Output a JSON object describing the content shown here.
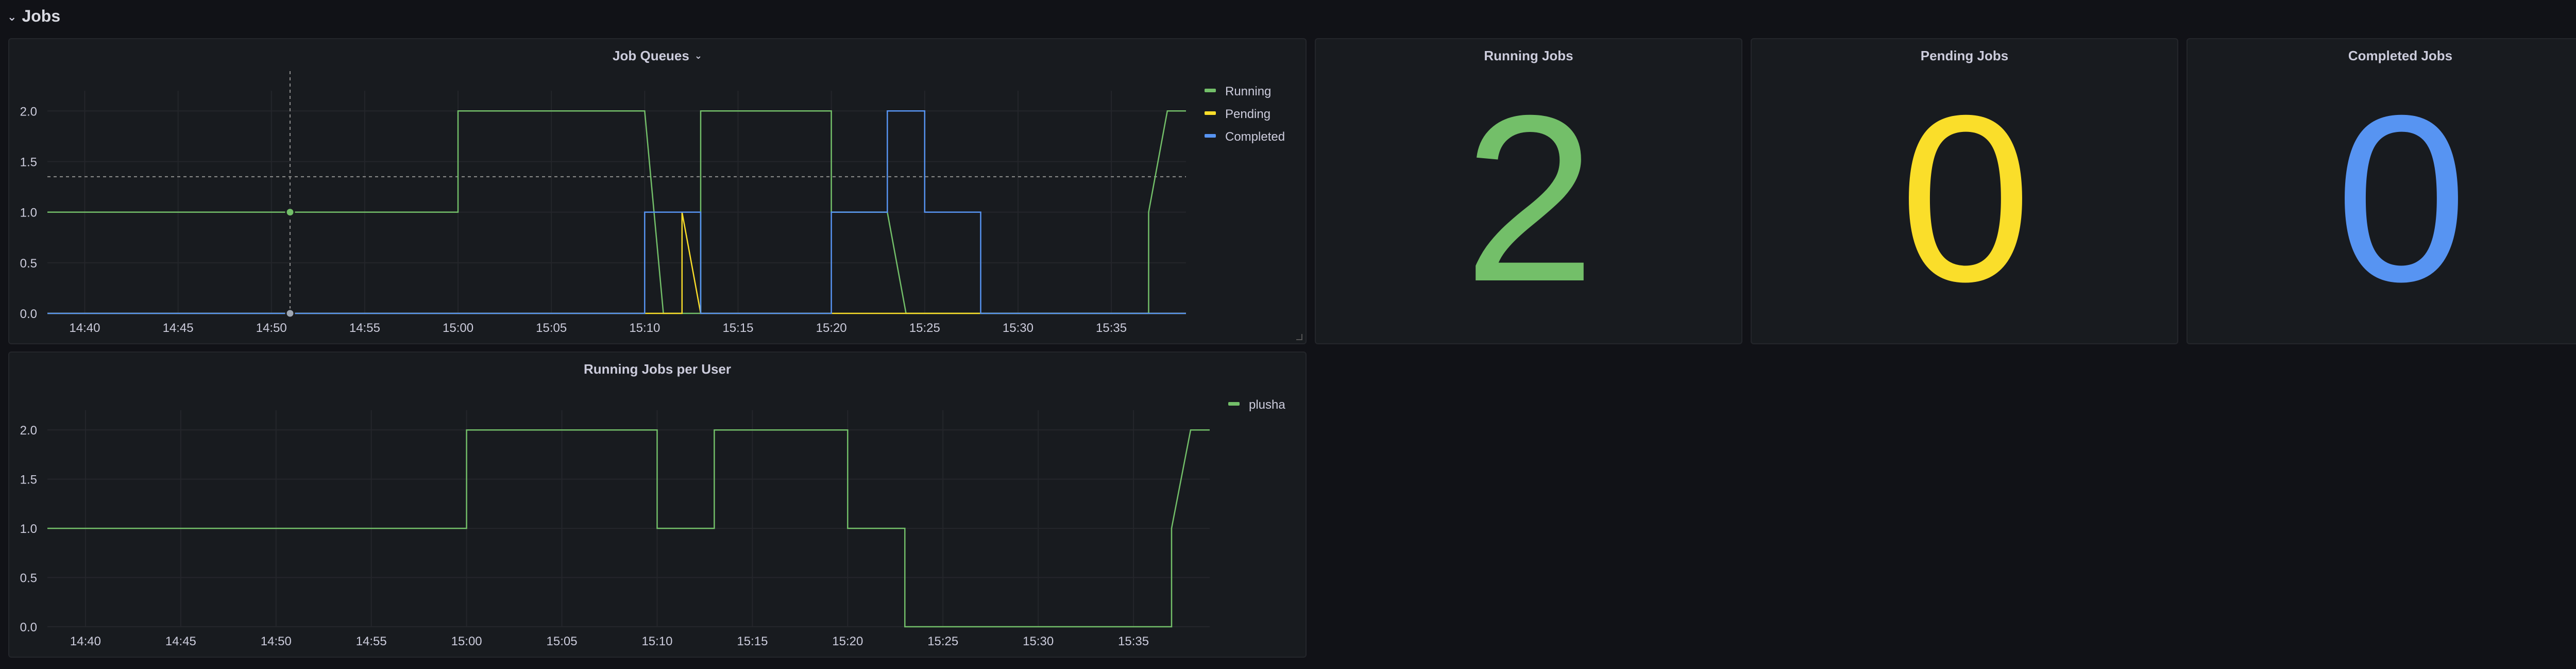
{
  "row": {
    "title": "Jobs",
    "toggle_icon": "chevron-down-icon"
  },
  "colors": {
    "running": "#73bf69",
    "pending": "#fade2a",
    "completed": "#5794f2",
    "plusha": "#73bf69"
  },
  "panels": {
    "job_queues": {
      "title": "Job Queues",
      "menu_icon": "chevron-down-icon"
    },
    "running_jobs": {
      "title": "Running Jobs",
      "value": "2",
      "color": "#73bf69"
    },
    "pending_jobs": {
      "title": "Pending Jobs",
      "value": "0",
      "color": "#fade2a"
    },
    "completed_jobs": {
      "title": "Completed Jobs",
      "value": "0",
      "color": "#5794f2"
    },
    "running_per_user": {
      "title": "Running Jobs per User"
    }
  },
  "chart_data": [
    {
      "type": "line",
      "title": "Job Queues",
      "xlim": [
        "14:38",
        "15:39"
      ],
      "ylim": [
        0,
        2.2
      ],
      "x_ticks": [
        "14:40",
        "14:45",
        "14:50",
        "14:55",
        "15:00",
        "15:05",
        "15:10",
        "15:15",
        "15:20",
        "15:25",
        "15:30",
        "15:35"
      ],
      "y_ticks": [
        "0.0",
        "0.5",
        "1.0",
        "1.5",
        "2.0"
      ],
      "grid": true,
      "legend": "top-right",
      "series": [
        {
          "name": "Running",
          "color": "#73bf69",
          "points": [
            [
              "14:38",
              1
            ],
            [
              "15:00",
              1
            ],
            [
              "15:00",
              2
            ],
            [
              "15:10",
              2
            ],
            [
              "15:11",
              0
            ],
            [
              "15:13",
              0
            ],
            [
              "15:13",
              2
            ],
            [
              "15:20",
              2
            ],
            [
              "15:20",
              1
            ],
            [
              "15:23",
              1
            ],
            [
              "15:24",
              0
            ],
            [
              "15:37",
              0
            ],
            [
              "15:37",
              1
            ],
            [
              "15:37",
              1
            ],
            [
              "15:38",
              2
            ],
            [
              "15:39",
              2
            ]
          ]
        },
        {
          "name": "Pending",
          "color": "#fade2a",
          "points": [
            [
              "14:38",
              0
            ],
            [
              "15:12",
              0
            ],
            [
              "15:12",
              1
            ],
            [
              "15:13",
              0
            ],
            [
              "15:39",
              0
            ]
          ]
        },
        {
          "name": "Completed",
          "color": "#5794f2",
          "points": [
            [
              "14:38",
              0
            ],
            [
              "15:10",
              0
            ],
            [
              "15:10",
              1
            ],
            [
              "15:13",
              1
            ],
            [
              "15:13",
              0
            ],
            [
              "15:20",
              0
            ],
            [
              "15:20",
              1
            ],
            [
              "15:23",
              1
            ],
            [
              "15:23",
              2
            ],
            [
              "15:25",
              2
            ],
            [
              "15:25",
              1
            ],
            [
              "15:28",
              1
            ],
            [
              "15:28",
              0
            ],
            [
              "15:39",
              0
            ]
          ]
        }
      ],
      "crosshair_time": "14:51",
      "threshold_y": 1.35
    },
    {
      "type": "line",
      "title": "Running Jobs per User",
      "xlim": [
        "14:38",
        "15:39"
      ],
      "ylim": [
        0,
        2.2
      ],
      "x_ticks": [
        "14:40",
        "14:45",
        "14:50",
        "14:55",
        "15:00",
        "15:05",
        "15:10",
        "15:15",
        "15:20",
        "15:25",
        "15:30",
        "15:35"
      ],
      "y_ticks": [
        "0.0",
        "0.5",
        "1.0",
        "1.5",
        "2.0"
      ],
      "grid": true,
      "legend": "top-right",
      "series": [
        {
          "name": "plusha",
          "color": "#73bf69",
          "points": [
            [
              "14:38",
              1
            ],
            [
              "15:00",
              1
            ],
            [
              "15:00",
              2
            ],
            [
              "15:10",
              2
            ],
            [
              "15:10",
              1
            ],
            [
              "15:13",
              1
            ],
            [
              "15:13",
              2
            ],
            [
              "15:20",
              2
            ],
            [
              "15:20",
              1
            ],
            [
              "15:23",
              1
            ],
            [
              "15:23",
              0
            ],
            [
              "15:37",
              0
            ],
            [
              "15:37",
              1
            ],
            [
              "15:37",
              1
            ],
            [
              "15:38",
              2
            ],
            [
              "15:39",
              2
            ]
          ]
        }
      ]
    }
  ]
}
